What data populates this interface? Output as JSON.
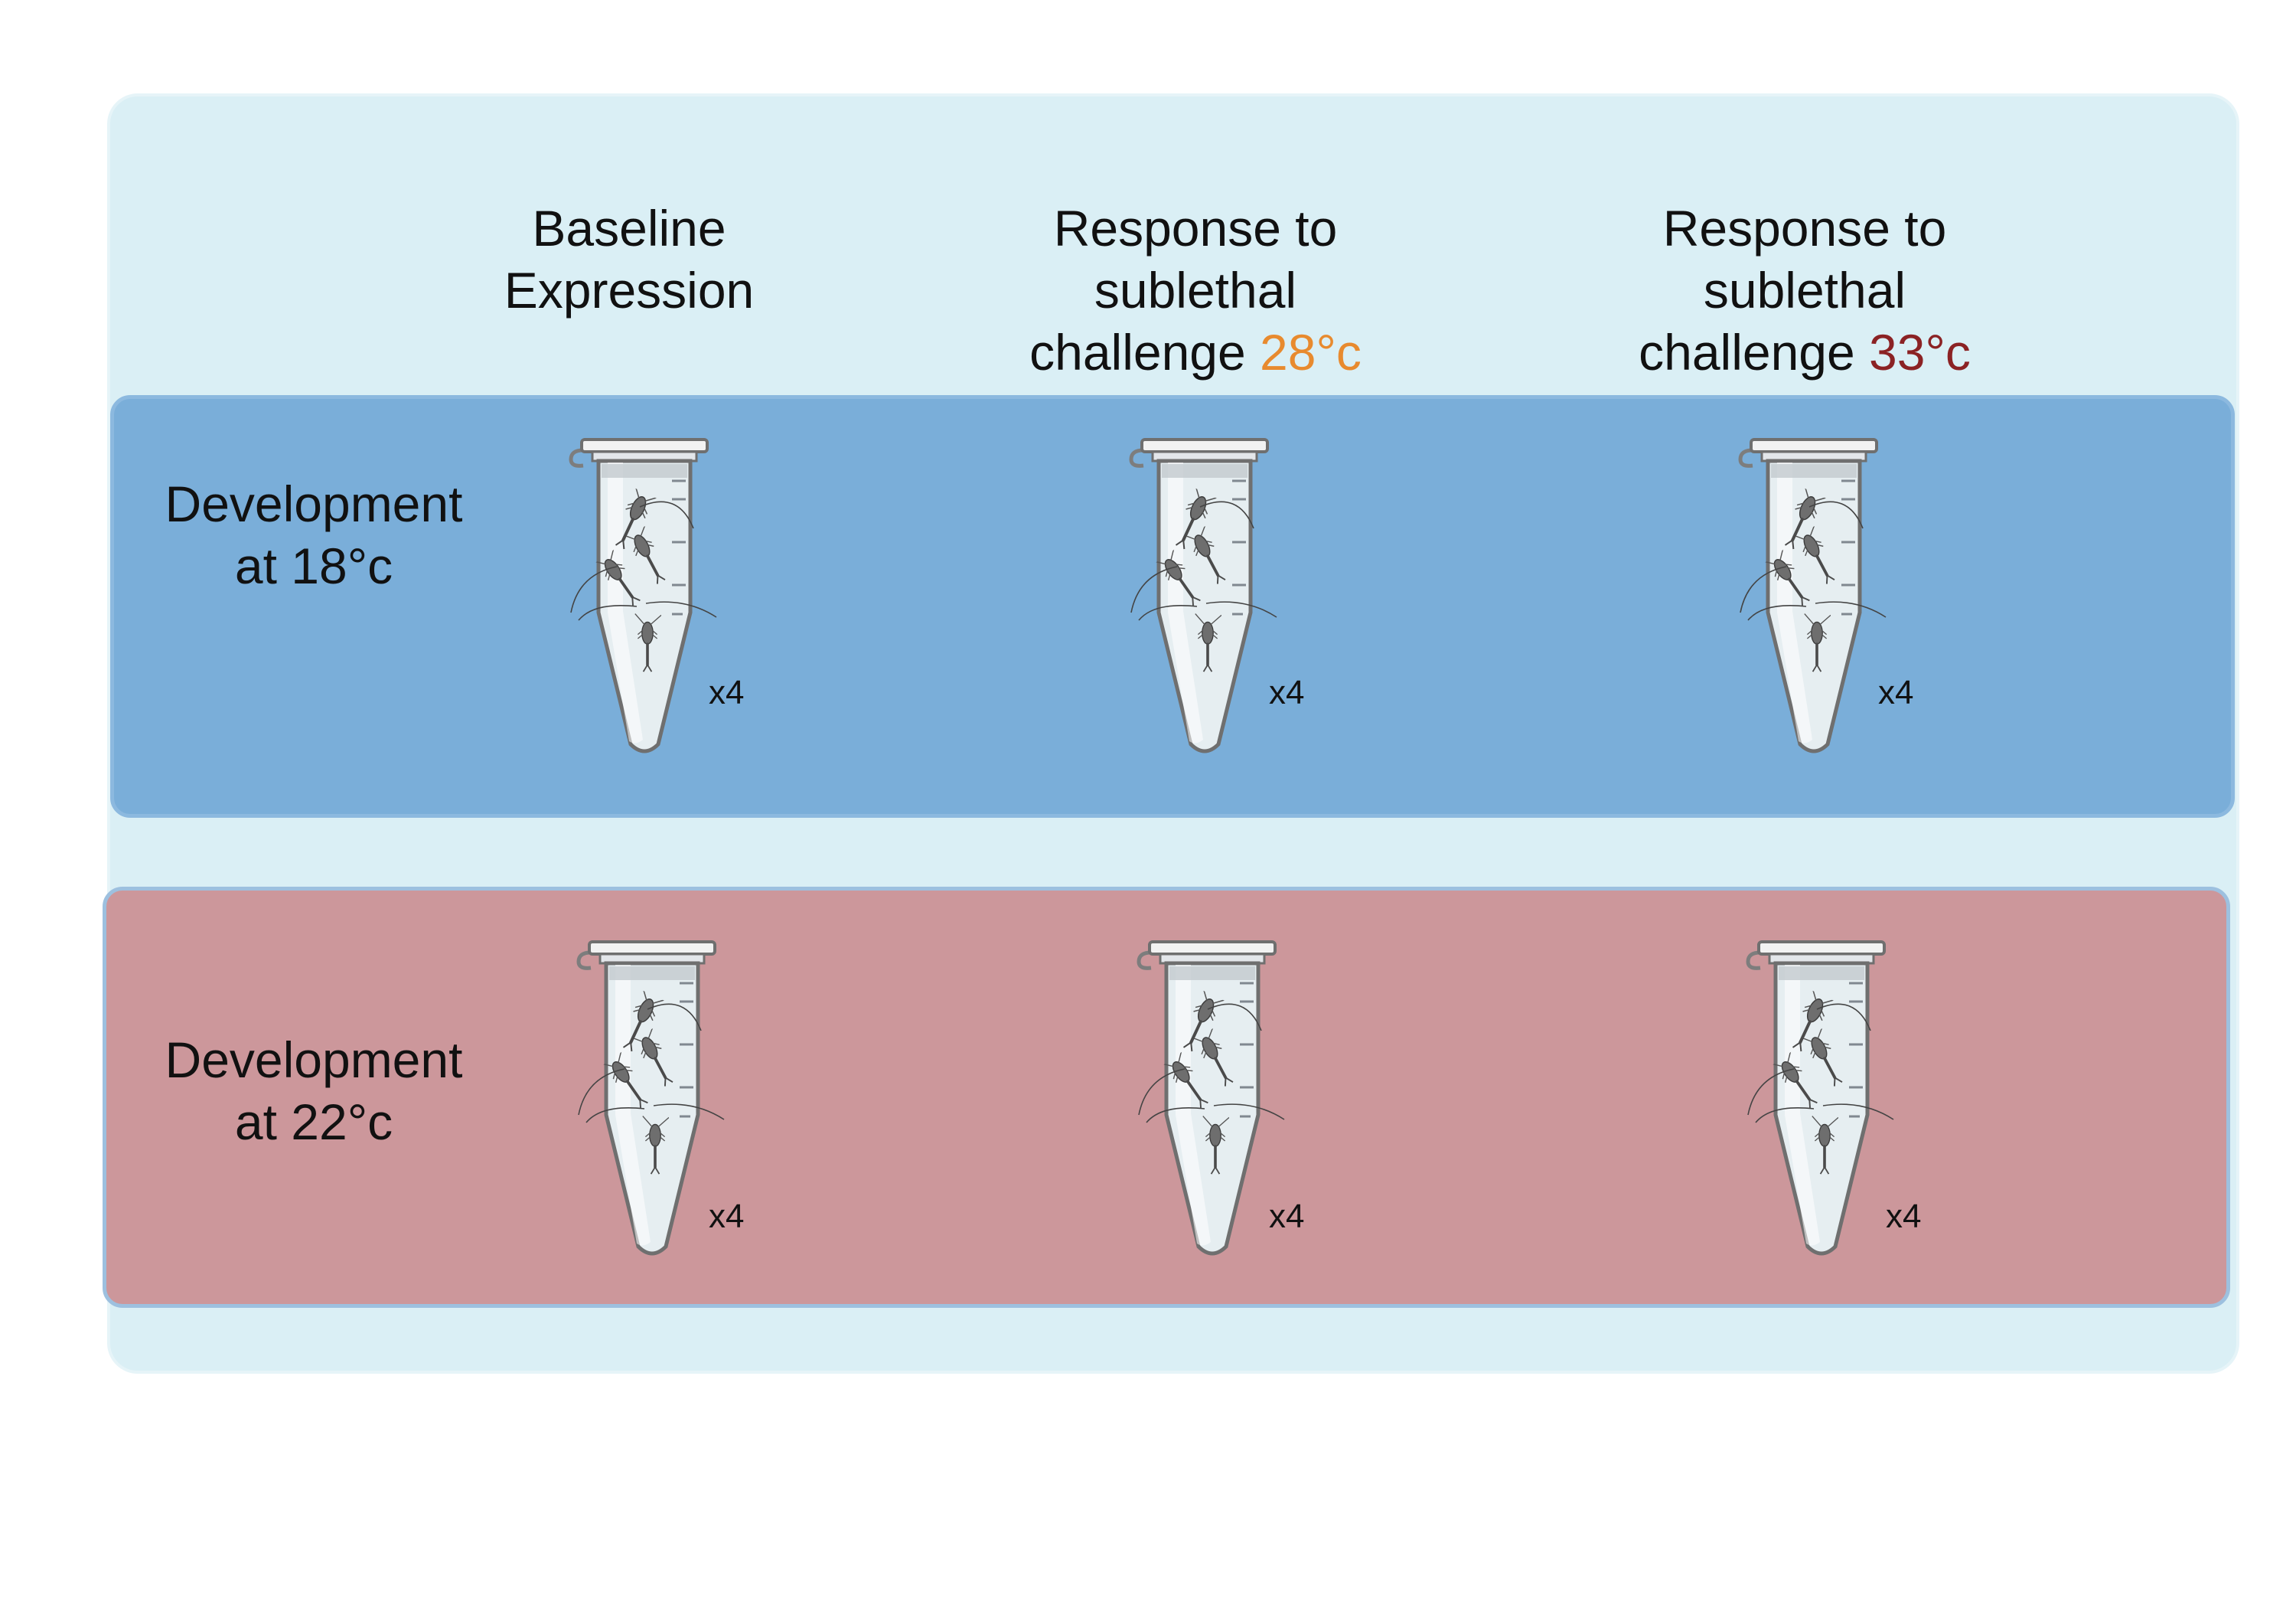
{
  "columns": [
    {
      "line1": "Baseline",
      "line2": "Expression",
      "line3_prefix": "",
      "temperature": ""
    },
    {
      "line1": "Response to",
      "line2": "sublethal",
      "line3_prefix": "challenge ",
      "temperature": "28°c"
    },
    {
      "line1": "Response to",
      "line2": "sublethal",
      "line3_prefix": "challenge ",
      "temperature": "33°c"
    }
  ],
  "rows": [
    {
      "line1": "Development",
      "line2": "at 18°c",
      "band_color": "#7aaed9"
    },
    {
      "line1": "Development",
      "line2": "at 22°c",
      "band_color": "#cc979b"
    }
  ],
  "replicate_label": "x4",
  "colors": {
    "panel_background": "#daeff5",
    "temp_28": "#e88a2e",
    "temp_33": "#8b2224"
  },
  "icons": [
    "microcentrifuge-tube-icon",
    "copepod-icon"
  ]
}
